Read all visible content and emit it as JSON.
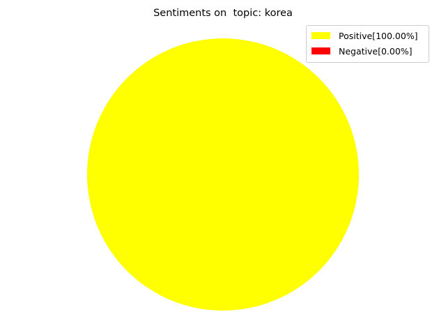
{
  "chart_data": {
    "type": "pie",
    "title": "Sentiments on  topic: korea",
    "slices": [
      {
        "label": "Positive[100.00%]",
        "value": 100.0,
        "color": "#ffff00"
      },
      {
        "label": "Negative[0.00%]",
        "value": 0.0,
        "color": "#ff0000"
      }
    ],
    "legend": {
      "position": "top-right",
      "entries": [
        "Positive[100.00%]",
        "Negative[0.00%]"
      ]
    }
  }
}
